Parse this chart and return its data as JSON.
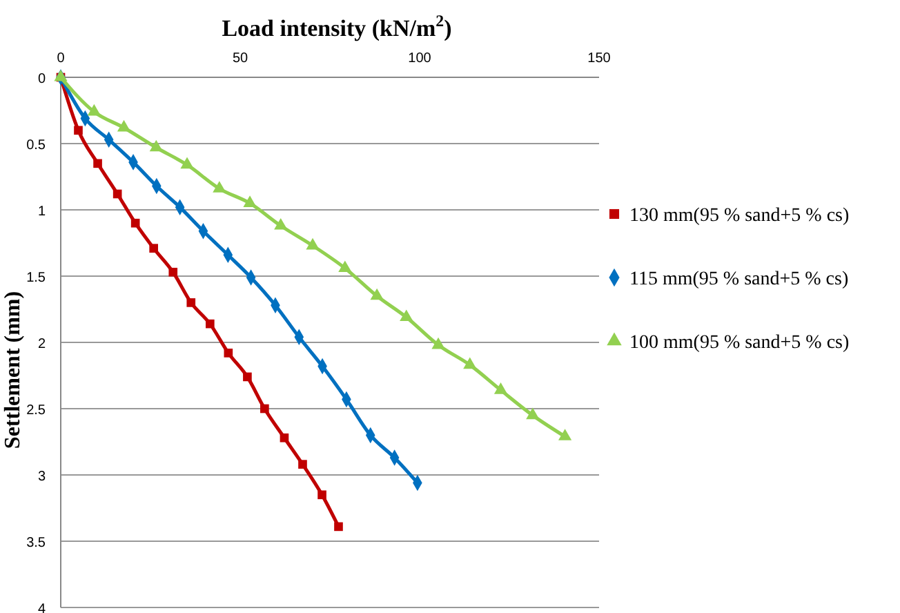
{
  "chart_data": {
    "type": "line",
    "xlabel": "Load intensity (kN/m$^{2}$)",
    "ylabel": "Settlement (mm)",
    "xlim": [
      0,
      150
    ],
    "xticks": [
      0,
      50,
      100,
      150
    ],
    "ylim": [
      4,
      0
    ],
    "yticks": [
      0,
      0.5,
      1,
      1.5,
      2,
      2.5,
      3,
      3.5,
      4
    ],
    "grid": "y",
    "legend": "right",
    "series": [
      {
        "name": "130 mm(95 % sand+5 % cs)",
        "color": "#c00000",
        "marker": "square",
        "x": [
          0,
          4.9,
          10.3,
          15.8,
          20.8,
          25.9,
          31.3,
          36.3,
          41.6,
          46.7,
          52,
          56.8,
          62.3,
          67.4,
          72.8,
          77.4
        ],
        "values": [
          0,
          0.4,
          0.65,
          0.88,
          1.1,
          1.29,
          1.47,
          1.7,
          1.86,
          2.08,
          2.26,
          2.5,
          2.72,
          2.92,
          3.15,
          3.39
        ]
      },
      {
        "name": "115 mm(95 % sand+5 % cs)",
        "color": "#0070c0",
        "marker": "diamond",
        "x": [
          0,
          6.8,
          13.4,
          20.2,
          26.7,
          33.2,
          39.7,
          46.6,
          53,
          59.8,
          66.4,
          72.9,
          79.6,
          86.3,
          93,
          99.4
        ],
        "values": [
          0,
          0.31,
          0.47,
          0.64,
          0.82,
          0.98,
          1.16,
          1.34,
          1.51,
          1.72,
          1.96,
          2.18,
          2.43,
          2.7,
          2.87,
          3.06
        ]
      },
      {
        "name": "100 mm(95 % sand+5 % cs)",
        "color": "#92d050",
        "marker": "triangle",
        "x": [
          0,
          9.3,
          17.6,
          26.6,
          35.2,
          44.2,
          52.7,
          61.3,
          70.2,
          79.2,
          88.1,
          96.3,
          105.2,
          114,
          122.6,
          131.5,
          140.5
        ],
        "values": [
          0,
          0.26,
          0.38,
          0.53,
          0.66,
          0.84,
          0.95,
          1.12,
          1.27,
          1.44,
          1.65,
          1.81,
          2.02,
          2.17,
          2.36,
          2.55,
          2.71
        ]
      }
    ]
  }
}
